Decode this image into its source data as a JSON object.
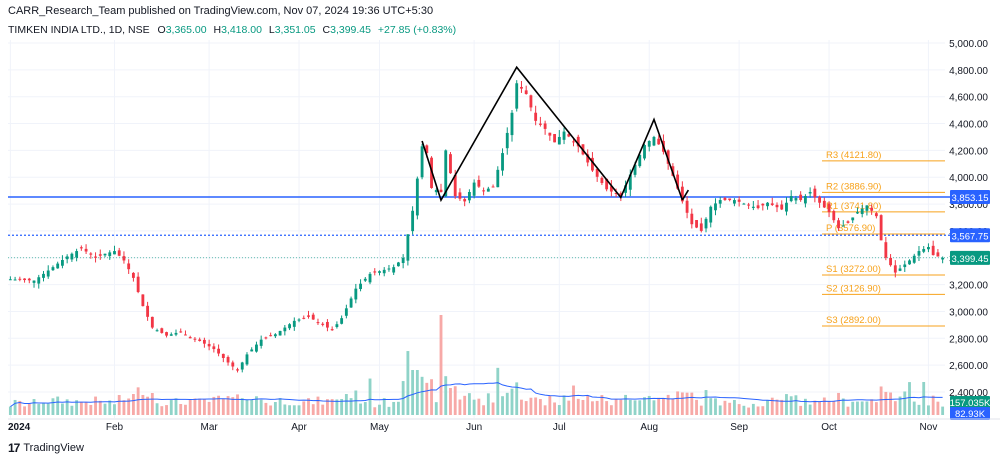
{
  "header": {
    "published": "CARR_Research_Team published on TradingView.com, Nov 07, 2024 19:36 UTC+5:30",
    "symbol": "TIMKEN INDIA LTD., 1D, NSE",
    "o_label": "O",
    "o_value": "3,365.00",
    "h_label": "H",
    "h_value": "3,418.00",
    "l_label": "L",
    "l_value": "3,351.05",
    "c_label": "C",
    "c_value": "3,399.45",
    "change": "+27.85 (+0.83%)"
  },
  "footer": {
    "logo_text": "TradingView",
    "logo_mark": "17"
  },
  "colors": {
    "up": "#089981",
    "down": "#f23645",
    "vol_up": "#8fd3c8",
    "vol_down": "#f7a9a7",
    "pivot": "#f7a21b",
    "hline": "#2962ff",
    "pattern": "#000000",
    "price_badge": "#089981",
    "vol_ma": "#2962ff"
  },
  "chart_data": {
    "type": "candlestick",
    "y_axis": {
      "min": 2250,
      "max": 5100,
      "ticks": [
        "5,000.00",
        "4,800.00",
        "4,600.00",
        "4,400.00",
        "4,200.00",
        "4,000.00",
        "3,800.00",
        "3,600.00",
        "3,400.00",
        "3,200.00",
        "3,000.00",
        "2,800.00",
        "2,600.00",
        "2,400.00"
      ],
      "tick_values": [
        5000,
        4800,
        4600,
        4400,
        4200,
        4000,
        3800,
        3600,
        3400,
        3200,
        3000,
        2800,
        2600,
        2400
      ]
    },
    "x_axis": {
      "labels": [
        {
          "label": "2024",
          "day": 0
        },
        {
          "label": "Feb",
          "day": 22
        },
        {
          "label": "Mar",
          "day": 42
        },
        {
          "label": "Apr",
          "day": 61
        },
        {
          "label": "May",
          "day": 78
        },
        {
          "label": "Jun",
          "day": 98
        },
        {
          "label": "Jul",
          "day": 116
        },
        {
          "label": "Aug",
          "day": 135
        },
        {
          "label": "Sep",
          "day": 154
        },
        {
          "label": "Oct",
          "day": 173
        },
        {
          "label": "Nov",
          "day": 194
        }
      ],
      "total_days": 198
    },
    "close_anchors": [
      [
        0,
        3240
      ],
      [
        5,
        3230
      ],
      [
        9,
        3330
      ],
      [
        12,
        3410
      ],
      [
        15,
        3470
      ],
      [
        18,
        3400
      ],
      [
        20,
        3430
      ],
      [
        22,
        3450
      ],
      [
        24,
        3380
      ],
      [
        26,
        3250
      ],
      [
        28,
        3040
      ],
      [
        30,
        2880
      ],
      [
        33,
        2820
      ],
      [
        36,
        2850
      ],
      [
        38,
        2800
      ],
      [
        40,
        2780
      ],
      [
        43,
        2720
      ],
      [
        46,
        2620
      ],
      [
        48,
        2560
      ],
      [
        50,
        2680
      ],
      [
        53,
        2790
      ],
      [
        56,
        2830
      ],
      [
        60,
        2930
      ],
      [
        63,
        2960
      ],
      [
        66,
        2900
      ],
      [
        68,
        2860
      ],
      [
        70,
        2950
      ],
      [
        73,
        3170
      ],
      [
        76,
        3280
      ],
      [
        78,
        3300
      ],
      [
        81,
        3330
      ],
      [
        83,
        3400
      ],
      [
        85,
        3750
      ],
      [
        87,
        4230
      ],
      [
        88,
        4180
      ],
      [
        89,
        3920
      ],
      [
        91,
        3890
      ],
      [
        92,
        4200
      ],
      [
        94,
        3860
      ],
      [
        96,
        3820
      ],
      [
        98,
        3960
      ],
      [
        100,
        3900
      ],
      [
        102,
        3930
      ],
      [
        104,
        4180
      ],
      [
        106,
        4480
      ],
      [
        107,
        4700
      ],
      [
        109,
        4620
      ],
      [
        111,
        4420
      ],
      [
        113,
        4360
      ],
      [
        115,
        4260
      ],
      [
        117,
        4340
      ],
      [
        120,
        4230
      ],
      [
        123,
        4050
      ],
      [
        126,
        3910
      ],
      [
        129,
        3860
      ],
      [
        131,
        4020
      ],
      [
        134,
        4240
      ],
      [
        136,
        4300
      ],
      [
        138,
        4190
      ],
      [
        140,
        4010
      ],
      [
        142,
        3820
      ],
      [
        144,
        3650
      ],
      [
        146,
        3600
      ],
      [
        148,
        3780
      ],
      [
        150,
        3830
      ],
      [
        153,
        3830
      ],
      [
        156,
        3790
      ],
      [
        158,
        3770
      ],
      [
        160,
        3810
      ],
      [
        163,
        3760
      ],
      [
        165,
        3860
      ],
      [
        167,
        3830
      ],
      [
        169,
        3890
      ],
      [
        171,
        3810
      ],
      [
        173,
        3740
      ],
      [
        175,
        3620
      ],
      [
        177,
        3660
      ],
      [
        179,
        3740
      ],
      [
        181,
        3790
      ],
      [
        183,
        3710
      ],
      [
        184,
        3530
      ],
      [
        185,
        3400
      ],
      [
        187,
        3290
      ],
      [
        189,
        3350
      ],
      [
        190,
        3380
      ],
      [
        192,
        3450
      ],
      [
        194,
        3480
      ],
      [
        195,
        3420
      ],
      [
        197,
        3399
      ]
    ],
    "annotations": {
      "horizontal_lines": [
        {
          "price": 3853.15,
          "label": "3,853.15",
          "style": "solid"
        },
        {
          "price": 3567.75,
          "label": "3,567.75",
          "style": "dotted"
        }
      ],
      "last_price": {
        "price": 3399.45,
        "label": "3,399.45"
      },
      "pivots": [
        {
          "name": "R3",
          "price": 4121.8,
          "label": "R3 (4121.80)"
        },
        {
          "name": "R2",
          "price": 3886.9,
          "label": "R2 (3886.90)"
        },
        {
          "name": "R1",
          "price": 3741.8,
          "label": "R1 (3741.80)"
        },
        {
          "name": "P",
          "price": 3576.9,
          "label": "P (3576.90)"
        },
        {
          "name": "S1",
          "price": 3272.0,
          "label": "S1 (3272.00)"
        },
        {
          "name": "S2",
          "price": 3126.9,
          "label": "S2 (3126.90)"
        },
        {
          "name": "S3",
          "price": 2892.0,
          "label": "S3 (2892.00)"
        }
      ],
      "pattern_points": [
        [
          87,
          4270
        ],
        [
          91,
          3830
        ],
        [
          107,
          4820
        ],
        [
          129,
          3850
        ],
        [
          136,
          4430
        ],
        [
          142,
          3830
        ]
      ],
      "volume_labels": [
        "157.035K",
        "82.93K"
      ]
    }
  }
}
